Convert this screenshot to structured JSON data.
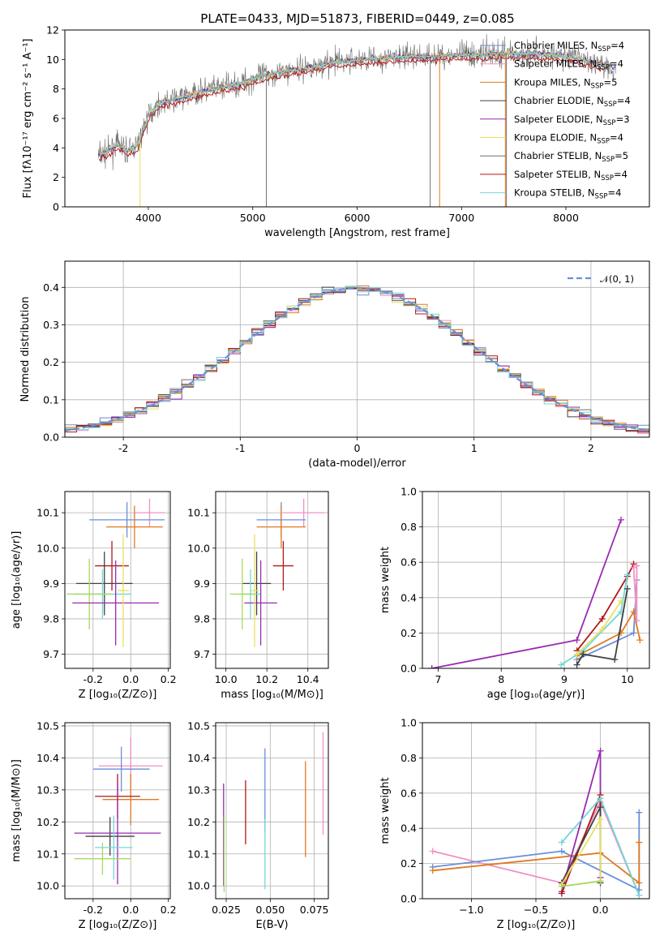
{
  "figure": {
    "title": "PLATE=0433, MJD=51873, FIBERID=0449, z=0.085"
  },
  "colors": {
    "chabrier_miles": "#6a8ed8",
    "salpeter_miles": "#f090c8",
    "kroupa_miles": "#e07a20",
    "chabrier_elodie": "#404040",
    "salpeter_elodie": "#9a2ab0",
    "kroupa_elodie": "#e8e060",
    "chabrier_stelib": "#707070",
    "salpeter_stelib": "#b01818",
    "kroupa_stelib": "#70d8d8",
    "normal_curve": "#6a8ed8",
    "extra_green": "#a8d860"
  },
  "chart_data": [
    {
      "id": "spectrum",
      "type": "line",
      "title": "PLATE=0433, MJD=51873, FIBERID=0449, z=0.085",
      "xlabel": "wavelength [Angstrom, rest frame]",
      "ylabel": "Flux [fλ10⁻¹⁷ erg cm⁻² s⁻¹ A⁻¹]",
      "xlim": [
        3200,
        8800
      ],
      "ylim": [
        0,
        12
      ],
      "xticks": [
        4000,
        5000,
        6000,
        7000,
        8000
      ],
      "yticks": [
        0,
        2,
        4,
        6,
        8,
        10,
        12
      ],
      "legend_position": "right",
      "continuum": {
        "x": [
          3500,
          3600,
          3700,
          3800,
          3900,
          4000,
          4100,
          4300,
          4500,
          4700,
          4900,
          5100,
          5300,
          5500,
          5700,
          5900,
          6100,
          6300,
          6500,
          6700,
          6900,
          7100,
          7300,
          7500,
          7700,
          7900,
          8100,
          8300,
          8500
        ],
        "y": [
          3.4,
          3.7,
          4.2,
          3.8,
          4.2,
          6.2,
          7.0,
          7.4,
          7.8,
          8.1,
          8.4,
          8.9,
          9.2,
          9.4,
          9.7,
          9.9,
          10.0,
          10.1,
          10.2,
          10.2,
          10.3,
          10.3,
          10.4,
          10.4,
          10.4,
          10.3,
          10.1,
          9.7,
          9.4
        ]
      },
      "series": [
        {
          "name": "Chabrier MILES, N_SSP=4",
          "label_main": "Chabrier MILES, N",
          "label_sub": "SSP",
          "label_end": "=4",
          "color_key": "chabrier_miles"
        },
        {
          "name": "Salpeter MILES, N_SSP=4",
          "label_main": "Salpeter MILES, N",
          "label_sub": "SSP",
          "label_end": "=4",
          "color_key": "salpeter_miles"
        },
        {
          "name": "Kroupa MILES, N_SSP=5",
          "label_main": "Kroupa MILES, N",
          "label_sub": "SSP",
          "label_end": "=5",
          "color_key": "kroupa_miles"
        },
        {
          "name": "Chabrier ELODIE, N_SSP=4",
          "label_main": "Chabrier ELODIE, N",
          "label_sub": "SSP",
          "label_end": "=4",
          "color_key": "chabrier_elodie"
        },
        {
          "name": "Salpeter ELODIE, N_SSP=3",
          "label_main": "Salpeter ELODIE, N",
          "label_sub": "SSP",
          "label_end": "=3",
          "color_key": "salpeter_elodie"
        },
        {
          "name": "Kroupa ELODIE, N_SSP=4",
          "label_main": "Kroupa ELODIE, N",
          "label_sub": "SSP",
          "label_end": "=4",
          "color_key": "kroupa_elodie"
        },
        {
          "name": "Chabrier STELIB, N_SSP=5",
          "label_main": "Chabrier STELIB, N",
          "label_sub": "SSP",
          "label_end": "=5",
          "color_key": "chabrier_stelib"
        },
        {
          "name": "Salpeter STELIB, N_SSP=4",
          "label_main": "Salpeter STELIB, N",
          "label_sub": "SSP",
          "label_end": "=4",
          "color_key": "salpeter_stelib"
        },
        {
          "name": "Kroupa STELIB, N_SSP=4",
          "label_main": "Kroupa STELIB, N",
          "label_sub": "SSP",
          "label_end": "=4",
          "color_key": "kroupa_stelib"
        }
      ]
    },
    {
      "id": "residuals",
      "type": "line",
      "xlabel": "(data-model)/error",
      "ylabel": "Normed distribution",
      "xlim": [
        -2.5,
        2.5
      ],
      "ylim": [
        0,
        0.47
      ],
      "xticks": [
        -2,
        -1,
        0,
        1,
        2
      ],
      "yticks": [
        0.0,
        0.1,
        0.2,
        0.3,
        0.4
      ],
      "legend_position": "upper-right",
      "legend_label": "𝒩(0, 1)",
      "normal": {
        "mu": 0,
        "sigma": 1
      },
      "bin_width": 0.1
    },
    {
      "id": "age_vs_Z",
      "type": "scatter",
      "xlabel": "Z [log₁₀(Z/Z⊙)]",
      "ylabel": "age  [log₁₀(age/yr)]",
      "xlim": [
        -0.35,
        0.21
      ],
      "ylim": [
        9.66,
        10.16
      ],
      "xticks": [
        -0.2,
        0.0,
        0.2
      ],
      "yticks": [
        9.7,
        9.8,
        9.9,
        10.0,
        10.1
      ],
      "points": [
        {
          "x": 0.1,
          "y": 10.1,
          "xerr": 0.08,
          "yerr": 0.04,
          "color_key": "salpeter_miles"
        },
        {
          "x": -0.02,
          "y": 10.08,
          "xerr": 0.2,
          "yerr": 0.05,
          "color_key": "chabrier_miles"
        },
        {
          "x": 0.02,
          "y": 10.06,
          "xerr": 0.15,
          "yerr": 0.06,
          "color_key": "kroupa_miles"
        },
        {
          "x": -0.1,
          "y": 9.95,
          "xerr": 0.09,
          "yerr": 0.07,
          "color_key": "salpeter_stelib"
        },
        {
          "x": -0.14,
          "y": 9.9,
          "xerr": 0.15,
          "yerr": 0.09,
          "color_key": "chabrier_elodie"
        },
        {
          "x": -0.15,
          "y": 9.87,
          "xerr": 0.15,
          "yerr": 0.07,
          "color_key": "kroupa_stelib"
        },
        {
          "x": -0.22,
          "y": 9.87,
          "xerr": 0.12,
          "yerr": 0.1,
          "color_key": "extra_green"
        },
        {
          "x": -0.08,
          "y": 9.845,
          "xerr": 0.23,
          "yerr": 0.12,
          "color_key": "salpeter_elodie"
        },
        {
          "x": -0.04,
          "y": 9.88,
          "xerr": 0.03,
          "yerr": 0.16,
          "color_key": "kroupa_elodie"
        }
      ]
    },
    {
      "id": "age_vs_mass",
      "type": "scatter",
      "xlabel": "mass [log₁₀(M/M⊙)]",
      "ylabel": "",
      "xlim": [
        9.95,
        10.5
      ],
      "ylim": [
        9.66,
        10.16
      ],
      "xticks": [
        10.0,
        10.2,
        10.4
      ],
      "yticks": [
        9.7,
        9.8,
        9.9,
        10.0,
        10.1
      ],
      "points": [
        {
          "x": 10.38,
          "y": 10.1,
          "xerr": 0.1,
          "yerr": 0.04,
          "color_key": "salpeter_miles"
        },
        {
          "x": 10.27,
          "y": 10.08,
          "xerr": 0.12,
          "yerr": 0.05,
          "color_key": "chabrier_miles"
        },
        {
          "x": 10.27,
          "y": 10.06,
          "xerr": 0.12,
          "yerr": 0.06,
          "color_key": "kroupa_miles"
        },
        {
          "x": 10.28,
          "y": 9.95,
          "xerr": 0.05,
          "yerr": 0.07,
          "color_key": "salpeter_stelib"
        },
        {
          "x": 10.15,
          "y": 9.9,
          "xerr": 0.07,
          "yerr": 0.09,
          "color_key": "chabrier_elodie"
        },
        {
          "x": 10.12,
          "y": 9.87,
          "xerr": 0.05,
          "yerr": 0.07,
          "color_key": "kroupa_stelib"
        },
        {
          "x": 10.08,
          "y": 9.87,
          "xerr": 0.06,
          "yerr": 0.1,
          "color_key": "extra_green"
        },
        {
          "x": 10.17,
          "y": 9.845,
          "xerr": 0.08,
          "yerr": 0.12,
          "color_key": "salpeter_elodie"
        },
        {
          "x": 10.14,
          "y": 9.88,
          "xerr": 0.02,
          "yerr": 0.16,
          "color_key": "kroupa_elodie"
        }
      ]
    },
    {
      "id": "weight_vs_age",
      "type": "line",
      "xlabel": "age  [log₁₀(age/yr)]",
      "ylabel": "mass weight",
      "xlim": [
        6.75,
        10.35
      ],
      "ylim": [
        0,
        1.0
      ],
      "xticks": [
        7,
        8,
        9,
        10
      ],
      "yticks": [
        0.0,
        0.2,
        0.4,
        0.6,
        0.8,
        1.0
      ],
      "series": [
        {
          "color_key": "salpeter_elodie",
          "x": [
            6.9,
            9.2,
            9.9
          ],
          "y": [
            0.0,
            0.16,
            0.84
          ]
        },
        {
          "color_key": "chabrier_miles",
          "x": [
            9.2,
            10.1,
            10.15
          ],
          "y": [
            0.05,
            0.2,
            0.5
          ]
        },
        {
          "color_key": "kroupa_miles",
          "x": [
            9.2,
            9.9,
            10.1,
            10.2
          ],
          "y": [
            0.07,
            0.2,
            0.32,
            0.16
          ]
        },
        {
          "color_key": "salpeter_stelib",
          "x": [
            9.2,
            9.6,
            10.0,
            10.1
          ],
          "y": [
            0.1,
            0.28,
            0.52,
            0.59
          ]
        },
        {
          "color_key": "kroupa_stelib",
          "x": [
            8.95,
            9.3,
            9.9,
            10.0
          ],
          "y": [
            0.02,
            0.1,
            0.32,
            0.53
          ]
        },
        {
          "color_key": "kroupa_elodie",
          "x": [
            9.2,
            9.6,
            9.9
          ],
          "y": [
            0.08,
            0.22,
            0.38
          ]
        },
        {
          "color_key": "chabrier_elodie",
          "x": [
            9.2,
            9.3,
            9.8,
            10.0
          ],
          "y": [
            0.02,
            0.08,
            0.05,
            0.45
          ]
        },
        {
          "color_key": "salpeter_miles",
          "x": [
            10.1,
            10.15,
            10.15
          ],
          "y": [
            0.57,
            0.27,
            0.58
          ]
        }
      ]
    },
    {
      "id": "mass_vs_Z",
      "type": "scatter",
      "xlabel": "Z [log₁₀(Z/Z⊙)]",
      "ylabel": "mass [log₁₀(M/M⊙)]",
      "xlim": [
        -0.35,
        0.21
      ],
      "ylim": [
        9.96,
        10.51
      ],
      "xticks": [
        -0.2,
        0.0,
        0.2
      ],
      "yticks": [
        10.0,
        10.1,
        10.2,
        10.3,
        10.4,
        10.5
      ],
      "points": [
        {
          "x": 0.0,
          "y": 10.375,
          "xerr": 0.17,
          "yerr": 0.09,
          "color_key": "salpeter_miles"
        },
        {
          "x": -0.05,
          "y": 10.365,
          "xerr": 0.15,
          "yerr": 0.07,
          "color_key": "chabrier_miles"
        },
        {
          "x": 0.0,
          "y": 10.27,
          "xerr": 0.15,
          "yerr": 0.08,
          "color_key": "kroupa_miles"
        },
        {
          "x": -0.07,
          "y": 10.28,
          "xerr": 0.12,
          "yerr": 0.07,
          "color_key": "salpeter_stelib"
        },
        {
          "x": -0.11,
          "y": 10.155,
          "xerr": 0.13,
          "yerr": 0.06,
          "color_key": "chabrier_elodie"
        },
        {
          "x": -0.07,
          "y": 10.165,
          "xerr": 0.23,
          "yerr": 0.16,
          "color_key": "salpeter_elodie"
        },
        {
          "x": -0.09,
          "y": 10.12,
          "xerr": 0.1,
          "yerr": 0.1,
          "color_key": "kroupa_stelib"
        },
        {
          "x": -0.15,
          "y": 10.085,
          "xerr": 0.15,
          "yerr": 0.05,
          "color_key": "extra_green"
        }
      ]
    },
    {
      "id": "mass_vs_ebv",
      "type": "scatter",
      "xlabel": "E(B-V)",
      "ylabel": "",
      "xlim": [
        0.019,
        0.083
      ],
      "ylim": [
        9.96,
        10.51
      ],
      "xticks": [
        0.025,
        0.05,
        0.075
      ],
      "xtick_labels": [
        "0.025",
        "0.050",
        "0.075"
      ],
      "yticks": [
        10.0,
        10.1,
        10.2,
        10.3,
        10.4,
        10.5
      ],
      "points": [
        {
          "x": 0.0235,
          "y": 10.16,
          "yerr": 0.16,
          "color_key": "salpeter_elodie"
        },
        {
          "x": 0.0238,
          "y": 10.1,
          "yerr": 0.12,
          "color_key": "extra_green"
        },
        {
          "x": 0.036,
          "y": 10.23,
          "yerr": 0.1,
          "color_key": "salpeter_stelib"
        },
        {
          "x": 0.047,
          "y": 10.3,
          "yerr": 0.13,
          "color_key": "chabrier_miles"
        },
        {
          "x": 0.047,
          "y": 10.1,
          "yerr": 0.11,
          "color_key": "kroupa_stelib"
        },
        {
          "x": 0.07,
          "y": 10.24,
          "yerr": 0.15,
          "color_key": "kroupa_miles"
        },
        {
          "x": 0.08,
          "y": 10.32,
          "yerr": 0.16,
          "color_key": "salpeter_miles"
        }
      ]
    },
    {
      "id": "weight_vs_Z",
      "type": "line",
      "xlabel": "Z [log₁₀(Z/Z⊙)]",
      "ylabel": "mass weight",
      "xlim": [
        -1.38,
        0.38
      ],
      "ylim": [
        0,
        1.0
      ],
      "xticks": [
        -1.0,
        -0.5,
        0.0
      ],
      "xtick_labels": [
        "−1.0",
        "−0.5",
        "0.0"
      ],
      "yticks": [
        0.0,
        0.2,
        0.4,
        0.6,
        0.8,
        1.0
      ],
      "series": [
        {
          "color_key": "salpeter_miles",
          "x": [
            -1.3,
            -0.3,
            0.0,
            0.3
          ],
          "y": [
            0.27,
            0.09,
            0.55,
            0.02
          ]
        },
        {
          "color_key": "chabrier_miles",
          "x": [
            -1.3,
            -0.3,
            0.3,
            0.3
          ],
          "y": [
            0.18,
            0.27,
            0.05,
            0.49
          ]
        },
        {
          "color_key": "kroupa_miles",
          "x": [
            -1.3,
            0.0,
            0.3,
            0.3
          ],
          "y": [
            0.16,
            0.26,
            0.09,
            0.32
          ]
        },
        {
          "color_key": "salpeter_elodie",
          "x": [
            -0.3,
            0.0,
            0.0
          ],
          "y": [
            0.04,
            0.84,
            0.12
          ]
        },
        {
          "color_key": "salpeter_stelib",
          "x": [
            -0.3,
            0.0,
            0.0
          ],
          "y": [
            0.03,
            0.59,
            0.1
          ]
        },
        {
          "color_key": "kroupa_stelib",
          "x": [
            -0.3,
            0.0,
            0.3
          ],
          "y": [
            0.32,
            0.57,
            0.02
          ]
        },
        {
          "color_key": "chabrier_elodie",
          "x": [
            -0.3,
            0.0,
            0.0
          ],
          "y": [
            0.09,
            0.52,
            0.09
          ]
        },
        {
          "color_key": "kroupa_elodie",
          "x": [
            -0.3,
            0.0,
            0.0
          ],
          "y": [
            0.08,
            0.45,
            0.1
          ]
        },
        {
          "color_key": "extra_green",
          "x": [
            -0.3,
            0.0
          ],
          "y": [
            0.07,
            0.1
          ]
        }
      ]
    }
  ]
}
